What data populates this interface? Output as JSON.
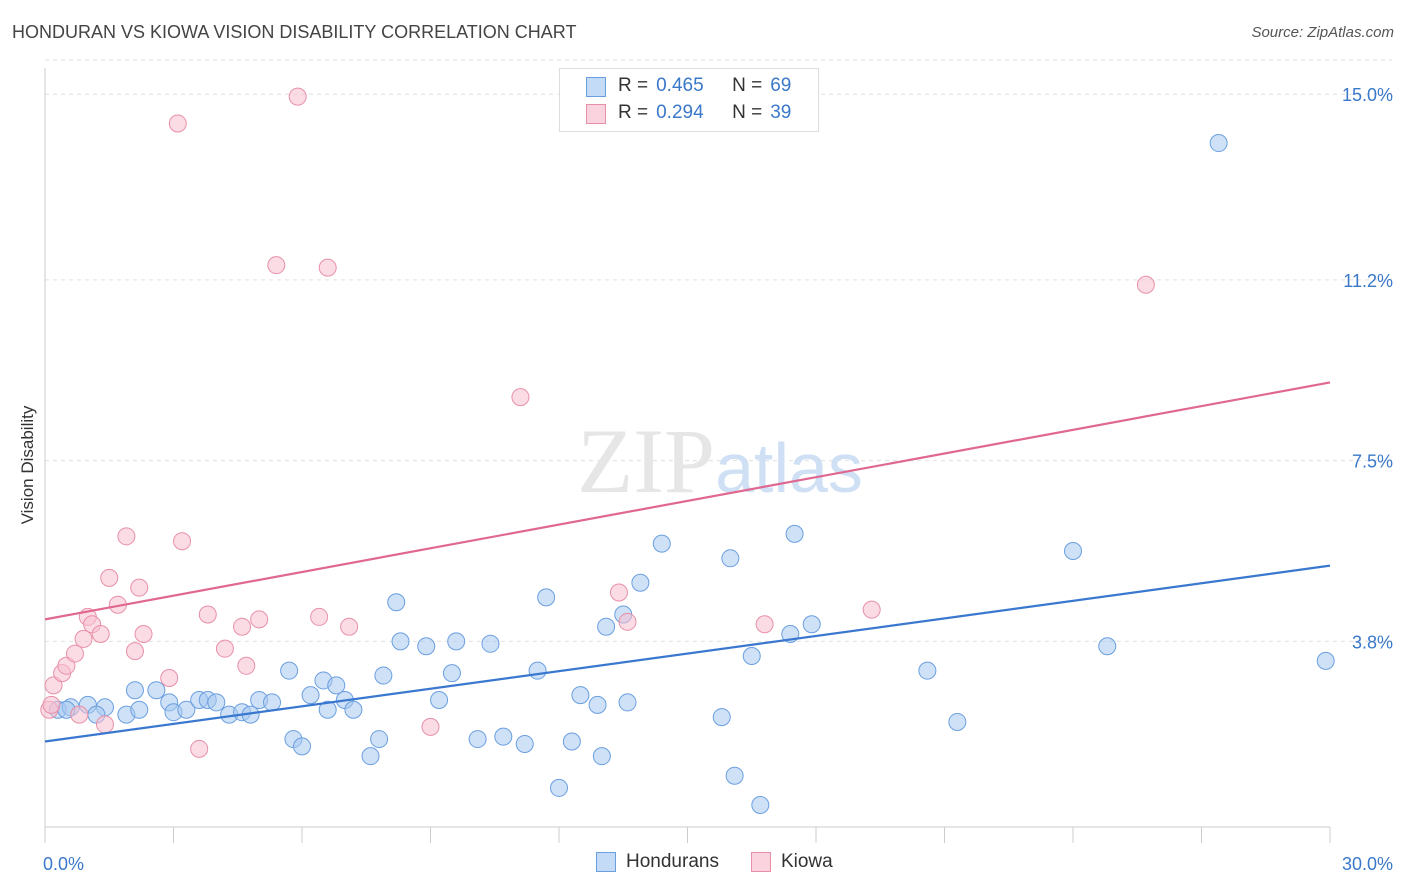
{
  "title": "HONDURAN VS KIOWA VISION DISABILITY CORRELATION CHART",
  "source": "Source: ZipAtlas.com",
  "watermark": {
    "part1": "ZIP",
    "part2": "atlas"
  },
  "legend": {
    "r_label": "R =",
    "n_label": "N =",
    "series": [
      {
        "name": "Hondurans",
        "r": "0.465",
        "n": "69",
        "color": "#a8c8f0",
        "edge": "#6a9fe0"
      },
      {
        "name": "Kiowa",
        "r": "0.294",
        "n": "39",
        "color": "#f8c0d0",
        "edge": "#e890a8"
      }
    ]
  },
  "chart_data": {
    "type": "scatter",
    "title": "HONDURAN VS KIOWA VISION DISABILITY CORRELATION CHART",
    "xlabel": "",
    "ylabel": "Vision Disability",
    "xlim": [
      0,
      30
    ],
    "ylim": [
      0,
      15.7
    ],
    "x_tick_labels": [
      "0.0%",
      "30.0%"
    ],
    "y_ticks": [
      3.8,
      7.5,
      11.2,
      15.0
    ],
    "y_tick_labels": [
      "3.8%",
      "7.5%",
      "11.2%",
      "15.0%"
    ],
    "grid": true,
    "series": [
      {
        "name": "Hondurans",
        "color": "#6a9fe0",
        "fill": "#a8c8f0",
        "trend": {
          "x": [
            0,
            30
          ],
          "y": [
            1.75,
            5.35
          ],
          "color": "#3a78d0"
        },
        "points": [
          [
            0.3,
            2.4
          ],
          [
            0.6,
            2.45
          ],
          [
            1.0,
            2.5
          ],
          [
            1.4,
            2.45
          ],
          [
            1.9,
            2.3
          ],
          [
            2.1,
            2.8
          ],
          [
            2.6,
            2.8
          ],
          [
            2.9,
            2.55
          ],
          [
            3.0,
            2.35
          ],
          [
            3.3,
            2.4
          ],
          [
            3.6,
            2.6
          ],
          [
            3.8,
            2.6
          ],
          [
            4.3,
            2.3
          ],
          [
            4.6,
            2.35
          ],
          [
            4.8,
            2.3
          ],
          [
            5.0,
            2.6
          ],
          [
            5.3,
            2.55
          ],
          [
            5.7,
            3.2
          ],
          [
            5.8,
            1.8
          ],
          [
            6.0,
            1.65
          ],
          [
            6.5,
            3.0
          ],
          [
            6.6,
            2.4
          ],
          [
            6.8,
            2.9
          ],
          [
            7.0,
            2.6
          ],
          [
            7.2,
            2.4
          ],
          [
            7.6,
            1.45
          ],
          [
            7.8,
            1.8
          ],
          [
            7.9,
            3.1
          ],
          [
            8.2,
            4.6
          ],
          [
            8.3,
            3.8
          ],
          [
            8.9,
            3.7
          ],
          [
            9.2,
            2.6
          ],
          [
            9.5,
            3.15
          ],
          [
            9.6,
            3.8
          ],
          [
            10.1,
            1.8
          ],
          [
            10.4,
            3.75
          ],
          [
            10.7,
            1.85
          ],
          [
            11.2,
            1.7
          ],
          [
            11.5,
            3.2
          ],
          [
            11.7,
            4.7
          ],
          [
            12.0,
            0.8
          ],
          [
            12.3,
            1.75
          ],
          [
            12.5,
            2.7
          ],
          [
            12.9,
            2.5
          ],
          [
            13.0,
            1.45
          ],
          [
            13.1,
            4.1
          ],
          [
            13.5,
            4.35
          ],
          [
            13.6,
            2.55
          ],
          [
            13.9,
            5.0
          ],
          [
            14.4,
            5.8
          ],
          [
            15.8,
            2.25
          ],
          [
            16.0,
            5.5
          ],
          [
            16.1,
            1.05
          ],
          [
            16.5,
            3.5
          ],
          [
            16.7,
            0.45
          ],
          [
            17.4,
            3.95
          ],
          [
            17.5,
            6.0
          ],
          [
            17.9,
            4.15
          ],
          [
            20.6,
            3.2
          ],
          [
            21.3,
            2.15
          ],
          [
            24.0,
            5.65
          ],
          [
            24.8,
            3.7
          ],
          [
            27.4,
            14.0
          ],
          [
            29.9,
            3.4
          ],
          [
            0.5,
            2.4
          ],
          [
            1.2,
            2.3
          ],
          [
            2.2,
            2.4
          ],
          [
            4.0,
            2.55
          ],
          [
            6.2,
            2.7
          ]
        ]
      },
      {
        "name": "Kiowa",
        "color": "#e890a8",
        "fill": "#f8c0d0",
        "trend": {
          "x": [
            0,
            30
          ],
          "y": [
            4.25,
            9.1
          ],
          "color": "#e06890"
        },
        "points": [
          [
            0.1,
            2.4
          ],
          [
            0.2,
            2.9
          ],
          [
            0.4,
            3.15
          ],
          [
            0.5,
            3.3
          ],
          [
            0.7,
            3.55
          ],
          [
            0.8,
            2.3
          ],
          [
            0.9,
            3.85
          ],
          [
            1.0,
            4.3
          ],
          [
            1.1,
            4.15
          ],
          [
            1.3,
            3.95
          ],
          [
            1.4,
            2.1
          ],
          [
            1.5,
            5.1
          ],
          [
            1.7,
            4.55
          ],
          [
            1.9,
            5.95
          ],
          [
            2.1,
            3.6
          ],
          [
            2.2,
            4.9
          ],
          [
            2.3,
            3.95
          ],
          [
            2.9,
            3.05
          ],
          [
            3.1,
            14.4
          ],
          [
            3.2,
            5.85
          ],
          [
            3.6,
            1.6
          ],
          [
            3.8,
            4.35
          ],
          [
            4.2,
            3.65
          ],
          [
            4.6,
            4.1
          ],
          [
            4.7,
            3.3
          ],
          [
            5.0,
            4.25
          ],
          [
            5.4,
            11.5
          ],
          [
            5.9,
            14.95
          ],
          [
            6.4,
            4.3
          ],
          [
            6.6,
            11.45
          ],
          [
            7.1,
            4.1
          ],
          [
            9.0,
            2.05
          ],
          [
            11.1,
            8.8
          ],
          [
            13.4,
            4.8
          ],
          [
            13.6,
            4.2
          ],
          [
            16.8,
            4.15
          ],
          [
            19.3,
            4.45
          ],
          [
            25.7,
            11.1
          ],
          [
            0.15,
            2.5
          ]
        ]
      }
    ]
  }
}
